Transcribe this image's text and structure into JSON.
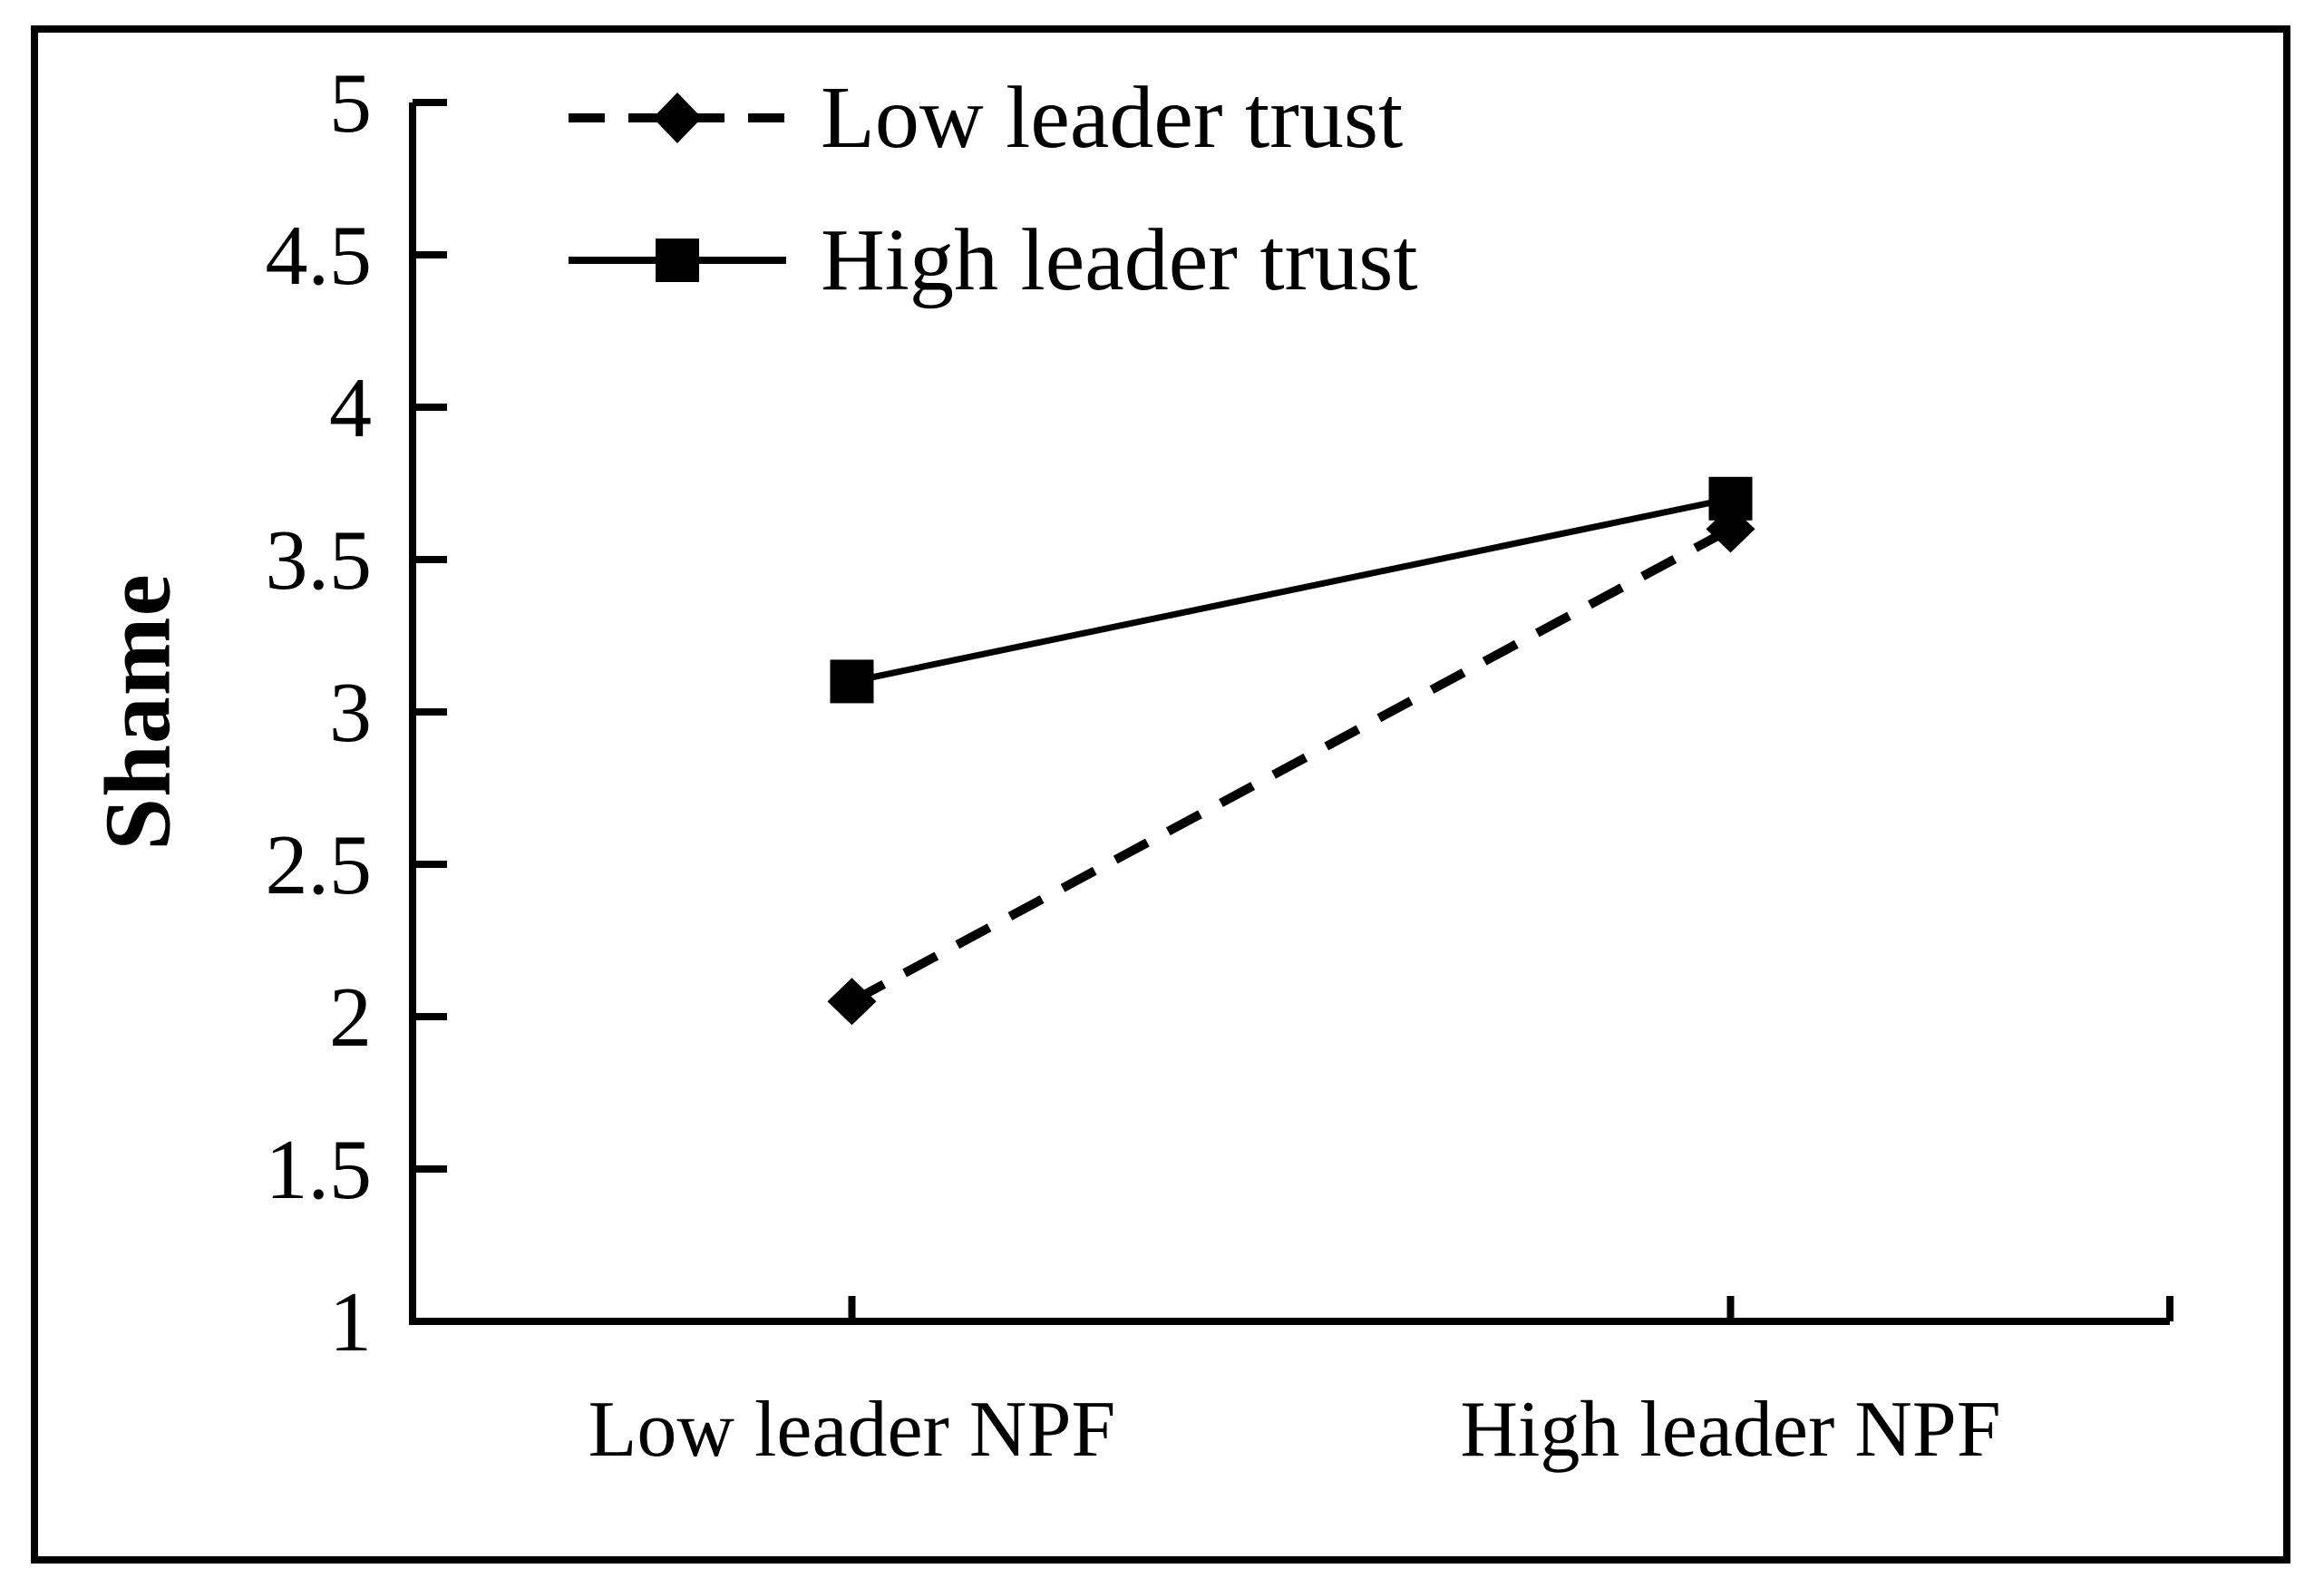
{
  "figure": {
    "background": "#ffffff",
    "border_color": "#000000",
    "ink_color": "#000000"
  },
  "chart_data": {
    "type": "line",
    "title": "",
    "categories": [
      "Low leader NPF",
      "High leader NPF"
    ],
    "series": [
      {
        "name": "Low leader trust",
        "values": [
          2.05,
          3.6
        ],
        "line_style": "dashed",
        "marker": "diamond",
        "color": "#000000"
      },
      {
        "name": "High leader trust",
        "values": [
          3.1,
          3.7
        ],
        "line_style": "solid",
        "marker": "square",
        "color": "#000000"
      }
    ],
    "xlabel": "",
    "ylabel": "Shame",
    "ylim": [
      1,
      5
    ],
    "ytick_step": 0.5,
    "yticks": [
      5,
      4.5,
      4,
      3.5,
      3,
      2.5,
      2,
      1.5,
      1
    ],
    "grid": false,
    "legend_position": "top-left"
  }
}
